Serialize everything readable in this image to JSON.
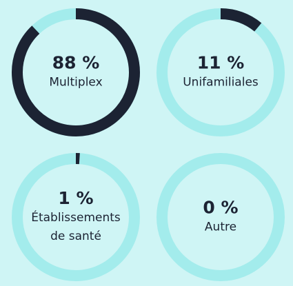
{
  "chart_data": {
    "type": "donut",
    "categories": [
      "Multiplex",
      "Unifamiliales",
      "Établissements de santé",
      "Autre"
    ],
    "values": [
      88,
      11,
      1,
      0
    ],
    "value_labels": [
      "88 %",
      "11 %",
      "1 %",
      "0 %"
    ],
    "color": "#1c2333",
    "track_color": "#a3ecec"
  }
}
